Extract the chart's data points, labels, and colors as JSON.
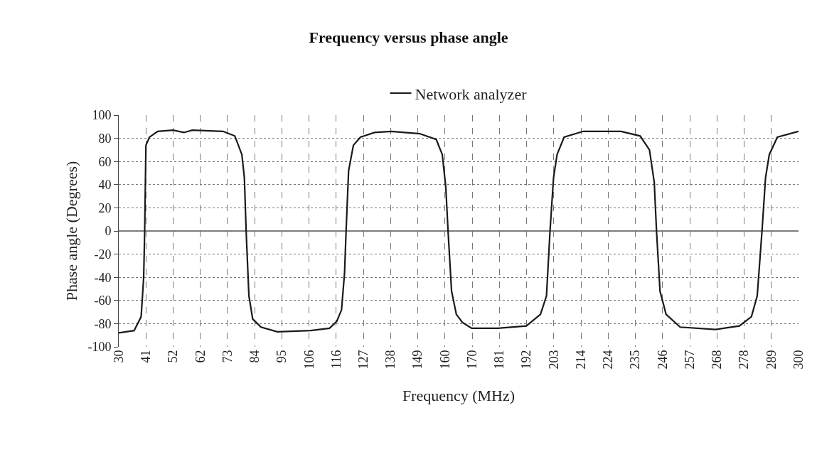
{
  "chart_data": {
    "type": "line",
    "title": "Frequency versus phase angle",
    "xlabel": "Frequency (MHz)",
    "ylabel": "Phase angle (Degrees)",
    "series": [
      {
        "name": "Network analyzer",
        "color": "#1a1a1a",
        "x": [
          30,
          36.1,
          38.9,
          39.9,
          40.3,
          40.8,
          42.2,
          45.5,
          51.6,
          55.9,
          59.2,
          71.4,
          76.1,
          78.9,
          79.9,
          80.6,
          81.7,
          83.2,
          86.5,
          93.0,
          106.2,
          113.7,
          116.6,
          118.5,
          119.7,
          120.3,
          121.3,
          123.2,
          126.0,
          131.6,
          138.2,
          149.5,
          156.1,
          158.5,
          159.9,
          160.8,
          162.2,
          164.1,
          166.5,
          170.2,
          180.6,
          191.9,
          197.5,
          199.9,
          201.3,
          202.7,
          204.1,
          206.9,
          214.5,
          229.5,
          237.1,
          240.8,
          242.7,
          243.6,
          245.0,
          247.4,
          253.0,
          267.1,
          276.5,
          281.3,
          283.6,
          285.5,
          286.9,
          288.4,
          291.6,
          300
        ],
        "values": [
          -88,
          -86,
          -74,
          -40,
          0,
          74,
          81,
          86,
          87,
          85,
          87,
          86,
          82,
          66,
          46,
          0,
          -56,
          -76,
          -83,
          -87,
          -86,
          -84,
          -78,
          -68,
          -36,
          0,
          52,
          74,
          81,
          85,
          86,
          84,
          79,
          66,
          38,
          0,
          -52,
          -72,
          -79,
          -84,
          -84,
          -82,
          -72,
          -56,
          0,
          46,
          66,
          81,
          86,
          86,
          82,
          70,
          42,
          0,
          -52,
          -72,
          -83,
          -85,
          -82,
          -74,
          -56,
          0,
          46,
          66,
          81,
          86
        ]
      }
    ],
    "xlim": [
      30,
      300
    ],
    "xticks": [
      30,
      {
        "value": 40.8,
        "label": "41"
      },
      {
        "value": 51.6,
        "label": "52"
      },
      {
        "value": 62.4,
        "label": "62"
      },
      {
        "value": 73.2,
        "label": "73"
      },
      84,
      {
        "value": 94.8,
        "label": "95"
      },
      {
        "value": 105.6,
        "label": "106"
      },
      {
        "value": 116.4,
        "label": "116"
      },
      {
        "value": 127.2,
        "label": "127"
      },
      138,
      {
        "value": 148.8,
        "label": "149"
      },
      {
        "value": 159.6,
        "label": "160"
      },
      {
        "value": 170.4,
        "label": "170"
      },
      {
        "value": 181.2,
        "label": "181"
      },
      192,
      {
        "value": 202.8,
        "label": "203"
      },
      {
        "value": 213.6,
        "label": "214"
      },
      {
        "value": 224.4,
        "label": "224"
      },
      {
        "value": 235.2,
        "label": "235"
      },
      246,
      {
        "value": 256.8,
        "label": "257"
      },
      {
        "value": 267.6,
        "label": "268"
      },
      {
        "value": 278.4,
        "label": "278"
      },
      {
        "value": 289.2,
        "label": "289"
      },
      300
    ],
    "ylim": [
      -100,
      100
    ],
    "yticks": [
      -100,
      -80,
      -60,
      -40,
      -20,
      0,
      20,
      40,
      60,
      80,
      100
    ],
    "ref_lines": [
      {
        "axis": "y",
        "value": 0,
        "color": "#555555",
        "line_style": "solid"
      }
    ],
    "grid": true,
    "legend": "top",
    "marker": "none",
    "line_style": "solid"
  }
}
